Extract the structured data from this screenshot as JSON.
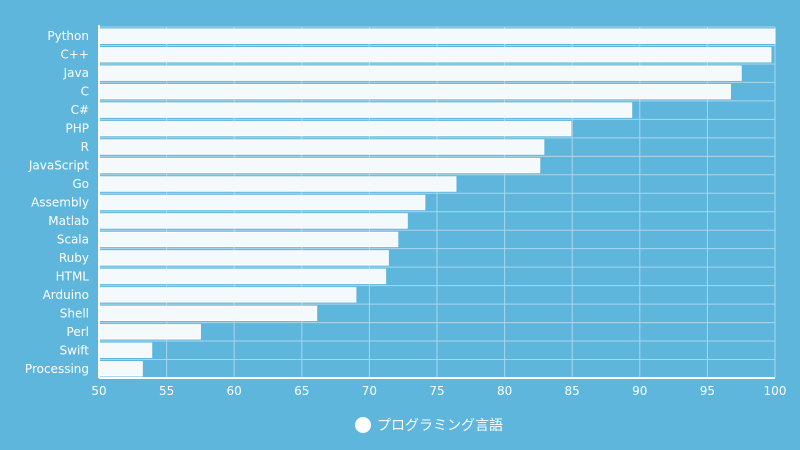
{
  "colors": {
    "background": "#5fb6dc",
    "bar_fill": "#f4f9fc",
    "bar_stroke": "#ffffff",
    "grid": "#a9d6ec",
    "axis": "#ffffff",
    "text": "#ffffff"
  },
  "legend": {
    "label": "プログラミング言語"
  },
  "chart_data": {
    "type": "bar",
    "orientation": "horizontal",
    "categories": [
      "Python",
      "C++",
      "Java",
      "C",
      "C#",
      "PHP",
      "R",
      "JavaScript",
      "Go",
      "Assembly",
      "Matlab",
      "Scala",
      "Ruby",
      "HTML",
      "Arduino",
      "Shell",
      "Perl",
      "Swift",
      "Processing"
    ],
    "values": [
      100,
      99.7,
      97.5,
      96.7,
      89.4,
      84.9,
      82.9,
      82.6,
      76.4,
      74.1,
      72.8,
      72.1,
      71.4,
      71.2,
      69.0,
      66.1,
      57.5,
      53.9,
      53.2
    ],
    "series": [
      {
        "name": "プログラミング言語",
        "values": [
          100,
          99.7,
          97.5,
          96.7,
          89.4,
          84.9,
          82.9,
          82.6,
          76.4,
          74.1,
          72.8,
          72.1,
          71.4,
          71.2,
          69.0,
          66.1,
          57.5,
          53.9,
          53.2
        ]
      }
    ],
    "xlim": [
      50,
      100
    ],
    "xticks": [
      "50",
      "55",
      "60",
      "65",
      "70",
      "75",
      "80",
      "85",
      "90",
      "95",
      "100"
    ],
    "grid": true,
    "legend_position": "bottom-center"
  }
}
